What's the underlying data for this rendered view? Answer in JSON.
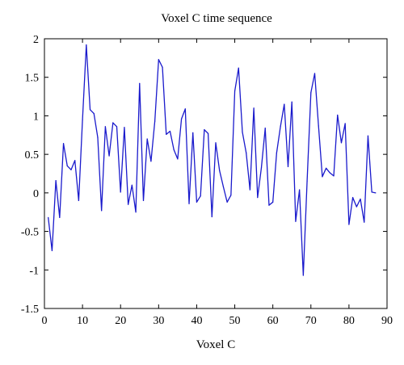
{
  "chart_data": {
    "type": "line",
    "title": "Voxel C time sequence",
    "xlabel": "Voxel C",
    "ylabel": "",
    "xlim": [
      0,
      90
    ],
    "ylim": [
      -1.5,
      2
    ],
    "xticks": [
      0,
      10,
      20,
      30,
      40,
      50,
      60,
      70,
      80,
      90
    ],
    "yticks": [
      -1.5,
      -1,
      -0.5,
      0,
      0.5,
      1,
      1.5,
      2
    ],
    "grid": false,
    "legend": "none",
    "series": [
      {
        "color": "#1a1acc",
        "x": [
          1,
          2,
          3,
          4,
          5,
          6,
          7,
          8,
          9,
          10,
          11,
          12,
          13,
          14,
          15,
          16,
          17,
          18,
          19,
          20,
          21,
          22,
          23,
          24,
          25,
          26,
          27,
          28,
          29,
          30,
          31,
          32,
          33,
          34,
          35,
          36,
          37,
          38,
          39,
          40,
          41,
          42,
          43,
          44,
          45,
          46,
          47,
          48,
          49,
          50,
          51,
          52,
          53,
          54,
          55,
          56,
          57,
          58,
          59,
          60,
          61,
          62,
          63,
          64,
          65,
          66,
          67,
          68,
          69,
          70,
          71,
          72,
          73,
          74,
          75,
          76,
          77,
          78,
          79,
          80,
          81,
          82,
          83,
          84,
          85,
          86,
          87
        ],
        "y": [
          -0.32,
          -0.75,
          0.16,
          -0.32,
          0.64,
          0.35,
          0.3,
          0.42,
          -0.1,
          0.95,
          1.92,
          1.08,
          1.03,
          0.72,
          -0.23,
          0.86,
          0.48,
          0.91,
          0.86,
          0.01,
          0.85,
          -0.15,
          0.1,
          -0.25,
          1.42,
          -0.1,
          0.7,
          0.41,
          0.93,
          1.73,
          1.63,
          0.76,
          0.8,
          0.56,
          0.44,
          0.96,
          1.09,
          -0.14,
          0.78,
          -0.12,
          -0.04,
          0.82,
          0.77,
          -0.31,
          0.65,
          0.29,
          0.08,
          -0.12,
          -0.03,
          1.32,
          1.62,
          0.79,
          0.52,
          0.04,
          1.1,
          -0.06,
          0.33,
          0.84,
          -0.16,
          -0.12,
          0.52,
          0.86,
          1.15,
          0.34,
          1.18,
          -0.37,
          0.04,
          -1.07,
          0.15,
          1.3,
          1.55,
          0.87,
          0.21,
          0.32,
          0.26,
          0.22,
          1.01,
          0.65,
          0.9,
          -0.41,
          -0.06,
          -0.18,
          -0.08,
          -0.38,
          0.74,
          0.01,
          0.0
        ]
      }
    ]
  }
}
